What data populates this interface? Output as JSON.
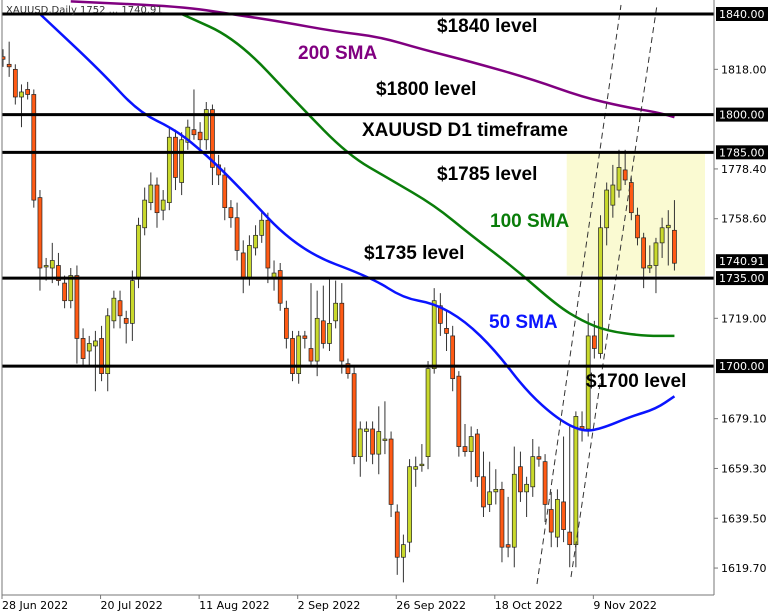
{
  "header": {
    "text": "XAUUSD,Daily  1752 ... 1740.91"
  },
  "chart_data": {
    "type": "candlestick",
    "symbol": "XAUUSD",
    "timeframe": "Daily",
    "ylim": [
      1612,
      1846
    ],
    "y_ticks": [
      "1818.00",
      "1778.40",
      "1758.60",
      "1719.00",
      "1679.10",
      "1659.30",
      "1639.50",
      "1619.70"
    ],
    "x_ticks": [
      {
        "label": "28 Jun 2022",
        "index": 0
      },
      {
        "label": "20 Jul 2022",
        "index": 16
      },
      {
        "label": "11 Aug 2022",
        "index": 32
      },
      {
        "label": "2 Sep 2022",
        "index": 48
      },
      {
        "label": "26 Sep 2022",
        "index": 64
      },
      {
        "label": "18 Oct 2022",
        "index": 80
      },
      {
        "label": "9 Nov 2022",
        "index": 96
      }
    ],
    "colors": {
      "bull": "#c9d92c",
      "bear": "#ff5a14",
      "sma50": "#0a14ff",
      "sma100": "#0a7d0a",
      "sma200": "#800080",
      "zone": "#fafad2"
    },
    "ohlc": [
      [
        1823,
        1826,
        1819,
        1822
      ],
      [
        1820,
        1829,
        1815,
        1819
      ],
      [
        1818,
        1820,
        1804,
        1807
      ],
      [
        1807,
        1812,
        1795,
        1809
      ],
      [
        1810,
        1813,
        1806,
        1808
      ],
      [
        1808,
        1810,
        1763,
        1766
      ],
      [
        1767,
        1770,
        1730,
        1739
      ],
      [
        1740,
        1743,
        1734,
        1740
      ],
      [
        1739,
        1749,
        1733,
        1742
      ],
      [
        1740,
        1745,
        1732,
        1734
      ],
      [
        1733,
        1736,
        1723,
        1726
      ],
      [
        1726,
        1739,
        1723,
        1736
      ],
      [
        1736,
        1740,
        1701,
        1711
      ],
      [
        1711,
        1715,
        1700,
        1703
      ],
      [
        1706,
        1712,
        1700,
        1709
      ],
      [
        1708,
        1714,
        1690,
        1710
      ],
      [
        1711,
        1716,
        1694,
        1697
      ],
      [
        1697,
        1723,
        1690,
        1720
      ],
      [
        1718,
        1730,
        1715,
        1727
      ],
      [
        1726,
        1730,
        1715,
        1720
      ],
      [
        1719,
        1722,
        1709,
        1717
      ],
      [
        1717,
        1738,
        1710,
        1734
      ],
      [
        1735,
        1759,
        1731,
        1756
      ],
      [
        1755,
        1771,
        1752,
        1766
      ],
      [
        1765,
        1777,
        1762,
        1772
      ],
      [
        1772,
        1775,
        1755,
        1761
      ],
      [
        1762,
        1770,
        1758,
        1766
      ],
      [
        1765,
        1795,
        1762,
        1791
      ],
      [
        1791,
        1794,
        1770,
        1775
      ],
      [
        1773,
        1793,
        1768,
        1790
      ],
      [
        1789,
        1798,
        1786,
        1795
      ],
      [
        1794,
        1810,
        1790,
        1792
      ],
      [
        1793,
        1797,
        1786,
        1790
      ],
      [
        1790,
        1805,
        1786,
        1802
      ],
      [
        1802,
        1804,
        1772,
        1779
      ],
      [
        1780,
        1784,
        1772,
        1776
      ],
      [
        1776,
        1779,
        1758,
        1763
      ],
      [
        1763,
        1766,
        1755,
        1759
      ],
      [
        1759,
        1765,
        1742,
        1746
      ],
      [
        1745,
        1750,
        1729,
        1735
      ],
      [
        1735,
        1752,
        1732,
        1748
      ],
      [
        1747,
        1756,
        1744,
        1752
      ],
      [
        1752,
        1762,
        1749,
        1758
      ],
      [
        1758,
        1761,
        1733,
        1739
      ],
      [
        1735,
        1742,
        1730,
        1737
      ],
      [
        1738,
        1741,
        1722,
        1725
      ],
      [
        1723,
        1726,
        1707,
        1711
      ],
      [
        1711,
        1714,
        1694,
        1697
      ],
      [
        1697,
        1714,
        1693,
        1712
      ],
      [
        1712,
        1714,
        1707,
        1711
      ],
      [
        1707,
        1733,
        1700,
        1702
      ],
      [
        1702,
        1730,
        1696,
        1719
      ],
      [
        1718,
        1732,
        1707,
        1709
      ],
      [
        1709,
        1735,
        1706,
        1717
      ],
      [
        1718,
        1734,
        1715,
        1725
      ],
      [
        1725,
        1733,
        1697,
        1702
      ],
      [
        1701,
        1703,
        1695,
        1697
      ],
      [
        1697,
        1700,
        1661,
        1664
      ],
      [
        1664,
        1678,
        1656,
        1675
      ],
      [
        1674,
        1678,
        1662,
        1675
      ],
      [
        1675,
        1678,
        1661,
        1665
      ],
      [
        1665,
        1684,
        1657,
        1674
      ],
      [
        1671,
        1686,
        1665,
        1671
      ],
      [
        1671,
        1674,
        1640,
        1645
      ],
      [
        1642,
        1645,
        1617,
        1624
      ],
      [
        1624,
        1633,
        1614,
        1629
      ],
      [
        1630,
        1663,
        1626,
        1660
      ],
      [
        1659,
        1664,
        1652,
        1660
      ],
      [
        1661,
        1669,
        1658,
        1661
      ],
      [
        1664,
        1702,
        1659,
        1699
      ],
      [
        1699,
        1731,
        1697,
        1726
      ],
      [
        1724,
        1729,
        1712,
        1717
      ],
      [
        1715,
        1722,
        1706,
        1713
      ],
      [
        1712,
        1716,
        1690,
        1695
      ],
      [
        1696,
        1698,
        1664,
        1668
      ],
      [
        1668,
        1677,
        1664,
        1666
      ],
      [
        1666,
        1676,
        1654,
        1672
      ],
      [
        1673,
        1675,
        1652,
        1656
      ],
      [
        1656,
        1666,
        1640,
        1644
      ],
      [
        1645,
        1662,
        1642,
        1650
      ],
      [
        1650,
        1659,
        1645,
        1651
      ],
      [
        1651,
        1654,
        1622,
        1628
      ],
      [
        1629,
        1648,
        1624,
        1628
      ],
      [
        1628,
        1668,
        1620,
        1657
      ],
      [
        1660,
        1666,
        1646,
        1650
      ],
      [
        1650,
        1656,
        1640,
        1653
      ],
      [
        1652,
        1671,
        1648,
        1664
      ],
      [
        1664,
        1668,
        1660,
        1663
      ],
      [
        1662,
        1665,
        1638,
        1645
      ],
      [
        1643,
        1650,
        1628,
        1634
      ],
      [
        1632,
        1651,
        1628,
        1647
      ],
      [
        1646,
        1672,
        1630,
        1635
      ],
      [
        1634,
        1676,
        1620,
        1629
      ],
      [
        1629,
        1682,
        1620,
        1680
      ],
      [
        1676,
        1682,
        1670,
        1675
      ],
      [
        1675,
        1721,
        1672,
        1712
      ],
      [
        1712,
        1718,
        1703,
        1707
      ],
      [
        1705,
        1760,
        1703,
        1755
      ],
      [
        1755,
        1773,
        1748,
        1770
      ],
      [
        1764,
        1780,
        1759,
        1772
      ],
      [
        1770,
        1786,
        1767,
        1779
      ],
      [
        1778,
        1786,
        1772,
        1774
      ],
      [
        1773,
        1775,
        1758,
        1761
      ],
      [
        1760,
        1763,
        1748,
        1751
      ],
      [
        1751,
        1753,
        1731,
        1739
      ],
      [
        1739,
        1748,
        1737,
        1740
      ],
      [
        1740,
        1751,
        1729,
        1749
      ],
      [
        1749,
        1759,
        1743,
        1755
      ],
      [
        1755,
        1762,
        1740,
        1756
      ],
      [
        1754,
        1766,
        1738,
        1740.91
      ]
    ],
    "sma": [
      {
        "name": "50 SMA",
        "color": "#0a14ff",
        "points": [
          [
            6,
            1840
          ],
          [
            16,
            1817
          ],
          [
            22,
            1801
          ],
          [
            28,
            1794
          ],
          [
            33,
            1784
          ],
          [
            38,
            1772
          ],
          [
            48,
            1746
          ],
          [
            60,
            1735
          ],
          [
            65,
            1727
          ],
          [
            70,
            1725
          ],
          [
            75,
            1718
          ],
          [
            80,
            1706
          ],
          [
            85,
            1690
          ],
          [
            90,
            1679
          ],
          [
            94,
            1674
          ],
          [
            97,
            1675
          ],
          [
            102,
            1680
          ],
          [
            106,
            1683
          ],
          [
            109,
            1688
          ]
        ]
      },
      {
        "name": "100 SMA",
        "color": "#0a7d0a",
        "points": [
          [
            29,
            1840
          ],
          [
            38,
            1830
          ],
          [
            48,
            1804
          ],
          [
            56,
            1784
          ],
          [
            63,
            1774
          ],
          [
            70,
            1764
          ],
          [
            76,
            1752
          ],
          [
            83,
            1739
          ],
          [
            90,
            1724
          ],
          [
            94,
            1718
          ],
          [
            98,
            1714
          ],
          [
            104,
            1712
          ],
          [
            109,
            1712
          ]
        ]
      },
      {
        "name": "200 SMA",
        "color": "#800080",
        "points": [
          [
            11,
            1845
          ],
          [
            29,
            1843
          ],
          [
            37,
            1840
          ],
          [
            45,
            1837
          ],
          [
            54,
            1833
          ],
          [
            61,
            1831
          ],
          [
            68,
            1826
          ],
          [
            76,
            1821
          ],
          [
            86,
            1814
          ],
          [
            94,
            1807
          ],
          [
            101,
            1803
          ],
          [
            106,
            1801
          ],
          [
            109,
            1799
          ]
        ]
      }
    ],
    "levels": [
      {
        "value": 1840,
        "label": "1840.00"
      },
      {
        "value": 1800,
        "label": "1800.00"
      },
      {
        "value": 1785,
        "label": "1785.00"
      },
      {
        "value": 1735,
        "label": "1735.00"
      },
      {
        "value": 1700,
        "label": "1700.00"
      }
    ],
    "last_price": {
      "value": 1740.91,
      "label": "1740.91"
    },
    "zone": {
      "from_index": 92,
      "top": 1785,
      "bottom": 1736
    },
    "annotations": {
      "l1840": "$1840 level",
      "sma200": "200 SMA",
      "l1800": "$1800 level",
      "title": "XAUUSD D1 timeframe",
      "l1785": "$1785 level",
      "sma100": "100 SMA",
      "l1735": "$1735 level",
      "sma50": "50 SMA",
      "l1700": "$1700 level"
    }
  }
}
